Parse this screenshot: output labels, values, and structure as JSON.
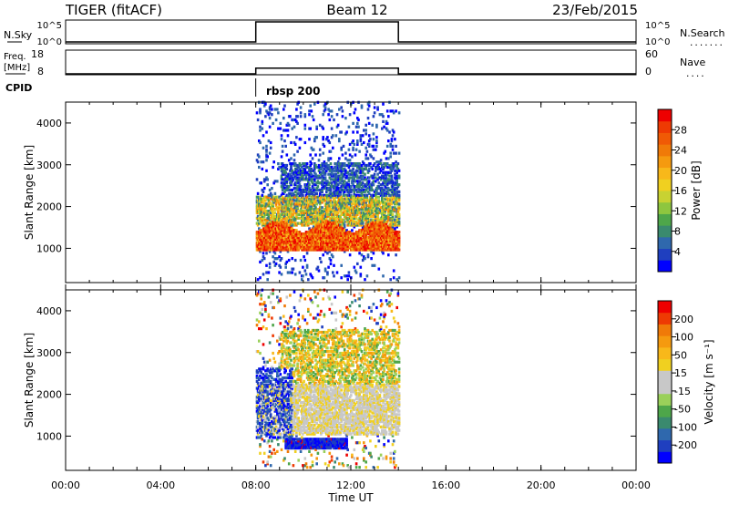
{
  "header": {
    "title": "TIGER (fitACF)",
    "beam": "Beam 12",
    "date": "23/Feb/2015"
  },
  "strips": {
    "nsky": {
      "left_label": "N.Sky",
      "left_ticks": [
        "10^5",
        "10^0"
      ],
      "right_ticks": [
        "10^5",
        "10^0"
      ],
      "right_label": "N.Search",
      "legend_style": "......."
    },
    "freq": {
      "left_label_1": "Freq.",
      "left_label_2": "[MHz]",
      "left_ticks": [
        "18",
        "8"
      ],
      "right_ticks": [
        "60",
        "0"
      ],
      "right_label": "Nave",
      "legend_style": "...."
    },
    "cpid": {
      "label": "CPID",
      "value": "rbsp 200"
    }
  },
  "axes": {
    "xlabel": "Time UT",
    "x_ticks": [
      "00:00",
      "04:00",
      "08:00",
      "12:00",
      "16:00",
      "20:00",
      "00:00"
    ],
    "ylabel": "Slant Range [km]",
    "y_ticks": [
      "1000",
      "2000",
      "3000",
      "4000"
    ]
  },
  "power_colorbar": {
    "label": "Power [dB]",
    "ticks": [
      "4",
      "8",
      "12",
      "16",
      "20",
      "24",
      "28"
    ],
    "colors": [
      "#0000ff",
      "#1f3fbf",
      "#2f68ad",
      "#3a8a6e",
      "#4ea64a",
      "#8ec63f",
      "#c8d232",
      "#f0d020",
      "#f8b81a",
      "#f59a0f",
      "#f07a08",
      "#f05a05",
      "#ee3a03",
      "#ee0000"
    ]
  },
  "velocity_colorbar": {
    "label": "Velocity [m s⁻¹]",
    "ticks": [
      "200",
      "100",
      "50",
      "15",
      "-15",
      "-50",
      "-100",
      "-200"
    ],
    "colors": [
      "#0000ff",
      "#1f3fbf",
      "#2f68ad",
      "#3a8a6e",
      "#4ea64a",
      "#9ad05a",
      "#c8c8c8",
      "#c8c8c8",
      "#f0d020",
      "#f8b81a",
      "#f59a0f",
      "#f07a08",
      "#ee3a03",
      "#ee0000"
    ]
  },
  "chart_data": [
    {
      "type": "line",
      "x_range_hours": [
        0,
        24
      ],
      "series": [
        {
          "x_hours": [
            0,
            8,
            8,
            14,
            14,
            24
          ],
          "values": [
            1,
            1,
            100000,
            100000,
            1,
            1
          ]
        }
      ],
      "y_scale": "log"
    },
    {
      "type": "line",
      "x_range_hours": [
        0,
        24
      ],
      "series": [
        {
          "x_hours": [
            0,
            8,
            8,
            14,
            14,
            24
          ],
          "values": [
            8,
            8,
            10.5,
            10.5,
            8,
            8
          ]
        }
      ],
      "ylim": [
        8,
        18
      ]
    },
    {
      "type": "heatmap",
      "x_range_hours": [
        0,
        24
      ],
      "ylim": [
        180,
        4500
      ],
      "data_window_hours": [
        8,
        14
      ],
      "bands": [
        {
          "t": [
            8.0,
            14.0
          ],
          "r": [
            900,
            1700
          ],
          "level": "high"
        },
        {
          "t": [
            8.0,
            14.0
          ],
          "r": [
            1500,
            2200
          ],
          "level": "mid"
        },
        {
          "t": [
            9.0,
            14.0
          ],
          "r": [
            2100,
            3000
          ],
          "level": "low"
        },
        {
          "t": [
            8.0,
            14.0
          ],
          "r": [
            200,
            4500
          ],
          "level": "sparse"
        }
      ]
    },
    {
      "type": "heatmap",
      "x_range_hours": [
        0,
        24
      ],
      "ylim": [
        180,
        4500
      ],
      "data_window_hours": [
        8,
        14
      ],
      "bands": [
        {
          "t": [
            9.2,
            11.8
          ],
          "r": [
            680,
            920
          ],
          "level": "toward"
        },
        {
          "t": [
            8.0,
            9.5
          ],
          "r": [
            900,
            2600
          ],
          "level": "toward"
        },
        {
          "t": [
            8.0,
            14.0
          ],
          "r": [
            1000,
            2200
          ],
          "level": "ground"
        },
        {
          "t": [
            9.0,
            14.0
          ],
          "r": [
            2000,
            3500
          ],
          "level": "away"
        },
        {
          "t": [
            8.0,
            14.0
          ],
          "r": [
            200,
            4500
          ],
          "level": "sparse"
        }
      ]
    }
  ]
}
